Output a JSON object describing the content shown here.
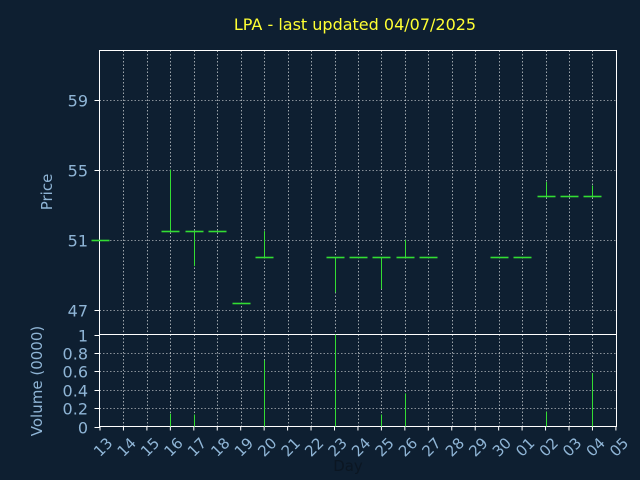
{
  "chart_data": {
    "type": "ohlc",
    "title": "LPA - last updated 04/07/2025",
    "xlabel": "Day",
    "colors": {
      "background": "#0e1f31",
      "plot_border": "#ffffff",
      "grid": "#ffffff",
      "bar": "#33dd33",
      "title": "#ffff33",
      "tick_label": "#8fb5d6"
    },
    "x_tick_labels": [
      "13",
      "14",
      "15",
      "16",
      "17",
      "18",
      "19",
      "20",
      "21",
      "22",
      "23",
      "24",
      "25",
      "26",
      "27",
      "28",
      "29",
      "30",
      "01",
      "02",
      "03",
      "04",
      "05"
    ],
    "price_panel": {
      "ylabel": "Price",
      "ylim": [
        45.6,
        61.8
      ],
      "yticks": [
        47,
        51,
        55,
        59
      ],
      "grid": true,
      "bars": [
        {
          "i": 0,
          "open": 51.0,
          "high": 51.0,
          "low": 51.0,
          "close": 51.0
        },
        {
          "i": 3,
          "open": 51.5,
          "high": 55.0,
          "low": 51.5,
          "close": 51.5
        },
        {
          "i": 4,
          "open": 51.5,
          "high": 51.5,
          "low": 49.5,
          "close": 51.5
        },
        {
          "i": 5,
          "open": 51.5,
          "high": 51.5,
          "low": 51.5,
          "close": 51.5
        },
        {
          "i": 6,
          "open": 47.4,
          "high": 47.4,
          "low": 47.4,
          "close": 47.4
        },
        {
          "i": 7,
          "open": 50.0,
          "high": 51.5,
          "low": 50.0,
          "close": 50.0
        },
        {
          "i": 10,
          "open": 50.0,
          "high": 50.0,
          "low": 48.0,
          "close": 50.0
        },
        {
          "i": 11,
          "open": 50.0,
          "high": 50.0,
          "low": 50.0,
          "close": 50.0
        },
        {
          "i": 12,
          "open": 50.0,
          "high": 50.0,
          "low": 48.2,
          "close": 50.0
        },
        {
          "i": 13,
          "open": 50.0,
          "high": 51.0,
          "low": 50.0,
          "close": 50.0
        },
        {
          "i": 14,
          "open": 50.0,
          "high": 50.0,
          "low": 50.0,
          "close": 50.0
        },
        {
          "i": 17,
          "open": 50.0,
          "high": 50.0,
          "low": 50.0,
          "close": 50.0
        },
        {
          "i": 18,
          "open": 50.0,
          "high": 50.0,
          "low": 50.0,
          "close": 50.0
        },
        {
          "i": 19,
          "open": 53.5,
          "high": 54.3,
          "low": 53.5,
          "close": 53.5
        },
        {
          "i": 20,
          "open": 53.5,
          "high": 53.5,
          "low": 53.5,
          "close": 53.5
        },
        {
          "i": 21,
          "open": 53.5,
          "high": 54.1,
          "low": 53.5,
          "close": 53.5
        }
      ]
    },
    "volume_panel": {
      "ylabel": "Volume (0000)",
      "ylim": [
        0,
        1
      ],
      "yticks": [
        0,
        0.2,
        0.4,
        0.6,
        0.8,
        1
      ],
      "ytick_labels": [
        "0",
        "0.2",
        "0.4",
        "0.6",
        "0.8",
        "1"
      ],
      "grid": true,
      "bars": [
        {
          "i": 3,
          "value": 0.14
        },
        {
          "i": 4,
          "value": 0.13
        },
        {
          "i": 7,
          "value": 0.72
        },
        {
          "i": 10,
          "value": 1.0
        },
        {
          "i": 12,
          "value": 0.13
        },
        {
          "i": 13,
          "value": 0.36
        },
        {
          "i": 19,
          "value": 0.16
        },
        {
          "i": 21,
          "value": 0.58
        }
      ]
    }
  }
}
